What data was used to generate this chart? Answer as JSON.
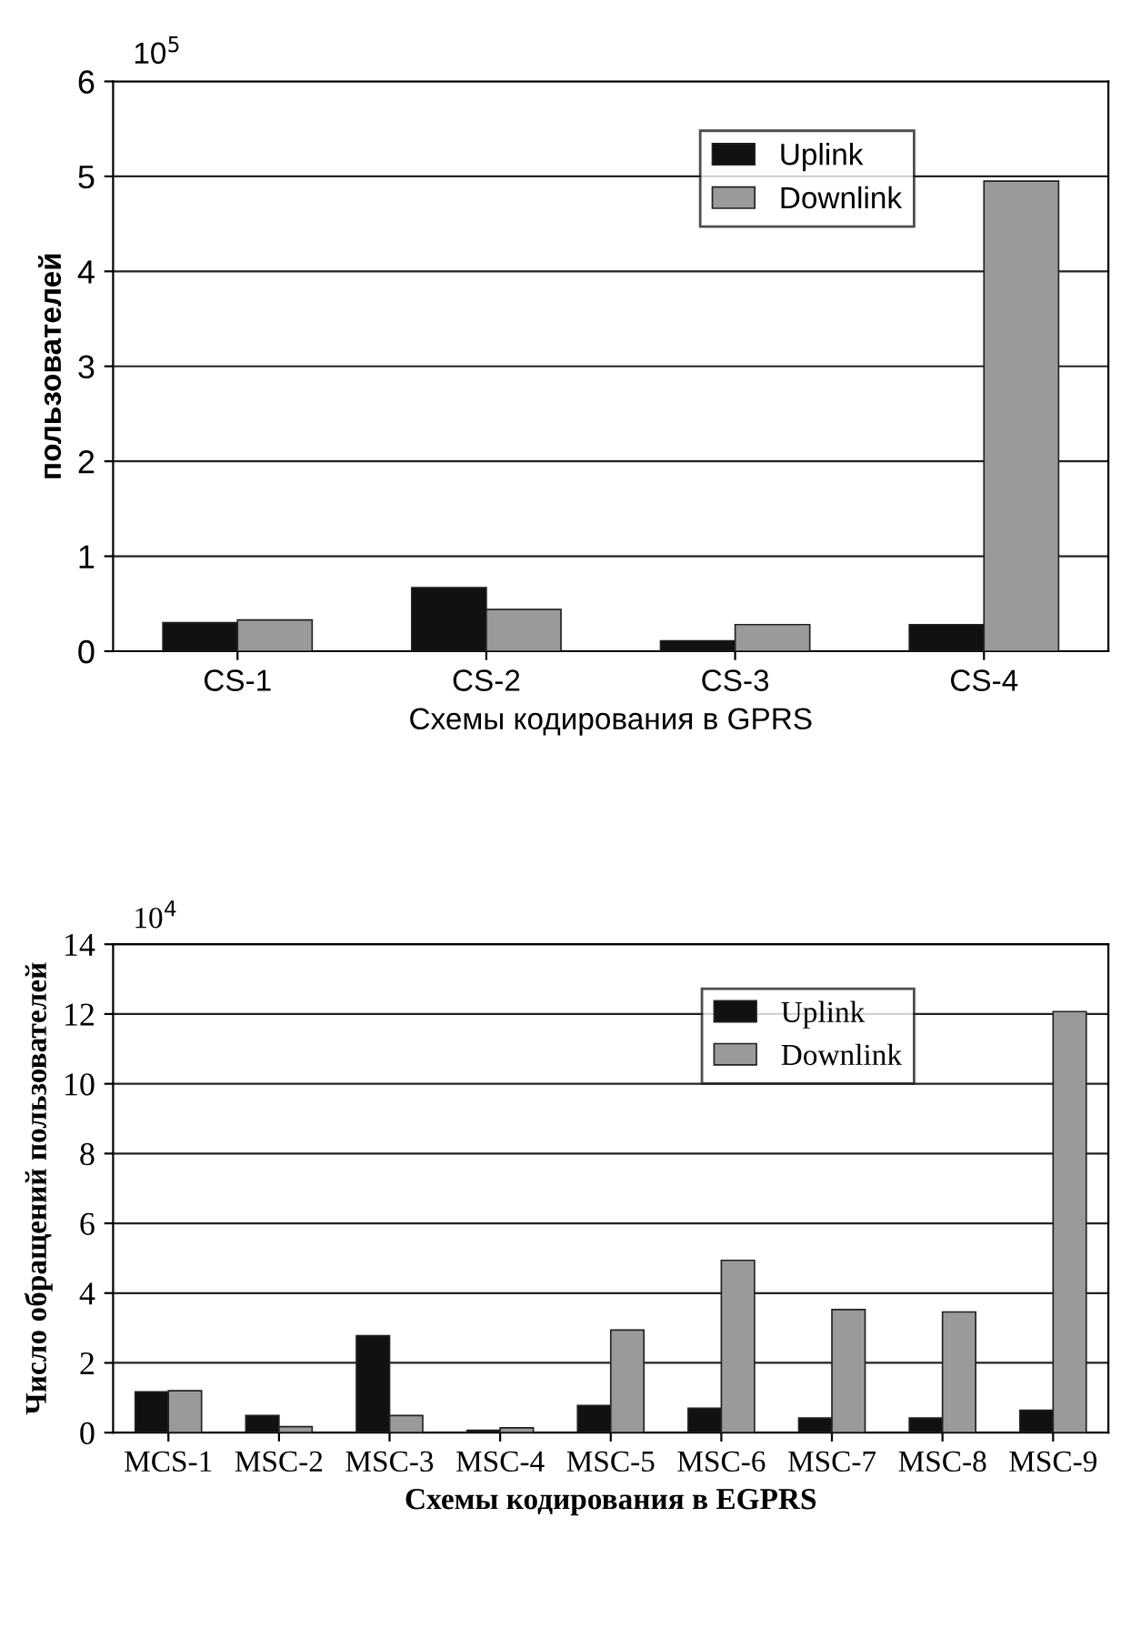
{
  "chart_data": [
    {
      "type": "bar",
      "xlabel": "Схемы кодирования в GPRS",
      "ylabel": "пользователей",
      "annotations": [
        "10$^{5}$"
      ],
      "categories": [
        "CS-1",
        "CS-2",
        "CS-3",
        "CS-4"
      ],
      "series": [
        {
          "name": "Uplink",
          "color": "#111111",
          "values": [
            0.3,
            0.67,
            0.11,
            0.28
          ]
        },
        {
          "name": "Downlink",
          "color": "#9a9a9a",
          "values": [
            0.33,
            0.44,
            0.28,
            4.95
          ]
        }
      ],
      "ylim": [
        0,
        6
      ],
      "yticks": [
        0,
        1,
        2,
        3,
        4,
        5,
        6
      ],
      "grid": "y",
      "legend": "top right"
    },
    {
      "type": "bar",
      "xlabel": "Схемы кодирования в EGPRS",
      "ylabel": "Число обращений пользователей",
      "annotations": [
        "10$^{4}$"
      ],
      "categories": [
        "MCS-1",
        "MSC-2",
        "MSC-3",
        "MSC-4",
        "MSC-5",
        "MSC-6",
        "MSC-7",
        "MSC-8",
        "MSC-9"
      ],
      "series": [
        {
          "name": "Uplink",
          "color": "#111111",
          "values": [
            1.17,
            0.49,
            2.78,
            0.07,
            0.78,
            0.7,
            0.42,
            0.42,
            0.64
          ]
        },
        {
          "name": "Downlink",
          "color": "#9a9a9a",
          "values": [
            1.2,
            0.17,
            0.49,
            0.14,
            2.94,
            4.94,
            3.53,
            3.46,
            12.07
          ]
        }
      ],
      "ylim": [
        0,
        14
      ],
      "yticks": [
        0,
        2,
        4,
        6,
        8,
        10,
        12,
        14
      ],
      "grid": "y",
      "legend": "top right"
    }
  ]
}
